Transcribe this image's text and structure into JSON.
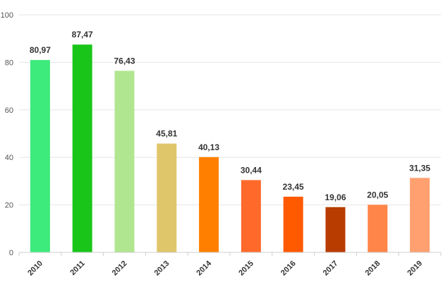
{
  "chart_data": {
    "type": "bar",
    "title": "",
    "xlabel": "",
    "ylabel": "",
    "categories": [
      "2010",
      "2011",
      "2012",
      "2013",
      "2014",
      "2015",
      "2016",
      "2017",
      "2018",
      "2019"
    ],
    "values": [
      80.97,
      87.47,
      76.43,
      45.81,
      40.13,
      30.44,
      23.45,
      19.06,
      20.05,
      31.35
    ],
    "value_labels": [
      "80,97",
      "87,47",
      "76,43",
      "45,81",
      "40,13",
      "30,44",
      "23,45",
      "19,06",
      "20,05",
      "31,35"
    ],
    "bar_colors": [
      "#3dea7c",
      "#1ac51a",
      "#b0e68f",
      "#e0c66a",
      "#ff8000",
      "#ff6a2b",
      "#ff5a00",
      "#b83c00",
      "#ff8548",
      "#ffa070"
    ],
    "ylim": [
      0,
      100
    ],
    "yticks": [
      0,
      20,
      40,
      60,
      80,
      100
    ],
    "ytick_labels": [
      "0",
      "20",
      "40",
      "60",
      "80",
      "100"
    ],
    "grid": true,
    "legend": "none"
  }
}
